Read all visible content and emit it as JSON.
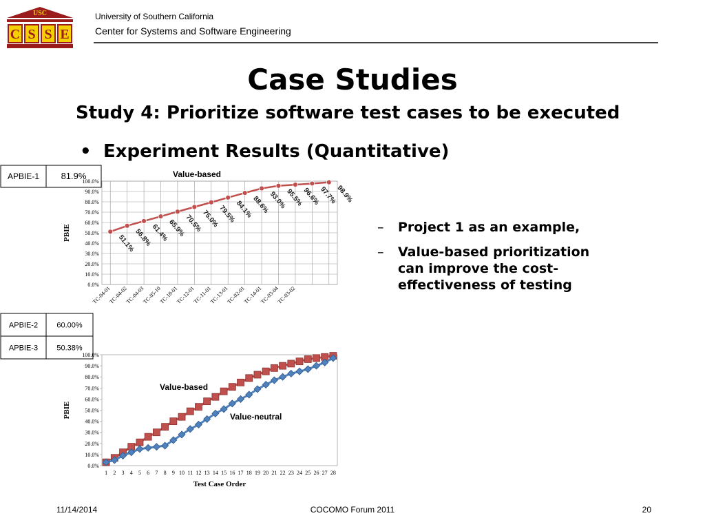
{
  "header": {
    "logo_top": "USC",
    "logo_letters": [
      "C",
      "S",
      "S",
      "E"
    ],
    "university": "University of Southern California",
    "center": "Center for Systems and Software Engineering"
  },
  "title": "Case Studies",
  "subtitle": "Study 4: Prioritize software test cases to be executed",
  "bullet": "Experiment Results (Quantitative)",
  "sub_bullets": [
    "Project 1 as an example,",
    "Value-based prioritization can improve the cost-effectiveness of testing"
  ],
  "table": {
    "rows": [
      [
        "APBIE-1",
        "81.9%"
      ],
      [
        "APBIE-2",
        "60.00%"
      ],
      [
        "APBIE-3",
        "50.38%"
      ]
    ]
  },
  "chart_data": [
    {
      "type": "line",
      "title": "Value-based",
      "ylabel": "PBIE",
      "categories": [
        "TC-04-01",
        "TC-04-02",
        "TC-04-03",
        "TC-05-10",
        "TC-18-01",
        "TC-12-01",
        "TC-11-01",
        "TC-13-01",
        "TC-02-01",
        "TC-14-01",
        "TC-03-04",
        "TC-03-02",
        null,
        null
      ],
      "values": [
        51.1,
        56.8,
        61.4,
        65.9,
        70.5,
        75.0,
        79.5,
        84.1,
        88.6,
        93.0,
        95.5,
        96.6,
        97.7,
        98.9
      ],
      "value_labels": [
        "51.1%",
        "56.8%",
        "61.4%",
        "65.9%",
        "70.5%",
        "75.0%",
        "79.5%",
        "84.1%",
        "88.6%",
        "93.0%",
        "95.5%",
        "96.6%",
        "97.7%",
        "98.9%"
      ],
      "color": "#c0504d",
      "ylim": [
        0,
        100
      ],
      "yticks": [
        {
          "value": 0,
          "label": "0.0%"
        },
        {
          "value": 10,
          "label": "10.0%"
        },
        {
          "value": 20,
          "label": "20.0%"
        },
        {
          "value": 30,
          "label": "30.0%"
        },
        {
          "value": 40,
          "label": "40.0%"
        },
        {
          "value": 50,
          "label": "50.0%"
        },
        {
          "value": 60,
          "label": "60.0%"
        },
        {
          "value": 70,
          "label": "70.0%"
        },
        {
          "value": 80,
          "label": "80.0%"
        },
        {
          "value": 90,
          "label": "90.0%"
        },
        {
          "value": 100,
          "label": "100.0%"
        }
      ],
      "grid": true
    },
    {
      "type": "line",
      "xlabel": "Test Case Order",
      "ylabel": "PBIE",
      "categories": [
        "1",
        "2",
        "3",
        "4",
        "5",
        "6",
        "7",
        "8",
        "9",
        "10",
        "11",
        "12",
        "13",
        "14",
        "15",
        "16",
        "17",
        "18",
        "19",
        "20",
        "21",
        "22",
        "23",
        "24",
        "25",
        "26",
        "27",
        "28"
      ],
      "series": [
        {
          "name": "Value-based",
          "color": "#c0504d",
          "values": [
            3,
            7,
            12,
            17,
            21,
            26,
            30,
            35,
            40,
            44,
            49,
            53,
            58,
            62,
            67,
            71,
            75,
            79,
            82,
            85,
            88,
            90,
            92,
            94,
            96,
            97,
            98,
            99
          ]
        },
        {
          "name": "Value-neutral",
          "color": "#4f81bd",
          "values": [
            3,
            5,
            9,
            12,
            15,
            16,
            17,
            18,
            23,
            28,
            33,
            37,
            42,
            47,
            51,
            56,
            60,
            64,
            69,
            73,
            77,
            80,
            83,
            85,
            87,
            90,
            93,
            97
          ]
        }
      ],
      "ylim": [
        0,
        100
      ],
      "yticks": [
        {
          "value": 0,
          "label": "0.0%"
        },
        {
          "value": 10,
          "label": "10.0%"
        },
        {
          "value": 20,
          "label": "20.0%"
        },
        {
          "value": 30,
          "label": "30.0%"
        },
        {
          "value": 40,
          "label": "40.0%"
        },
        {
          "value": 50,
          "label": "50.0%"
        },
        {
          "value": 60,
          "label": "60.0%"
        },
        {
          "value": 70,
          "label": "70.0%"
        },
        {
          "value": 80,
          "label": "80.0%"
        },
        {
          "value": 90,
          "label": "90.0%"
        },
        {
          "value": 100,
          "label": "100.0%"
        }
      ],
      "grid": false
    }
  ],
  "footer": {
    "date": "11/14/2014",
    "event": "COCOMO Forum 2011",
    "page": "20"
  }
}
